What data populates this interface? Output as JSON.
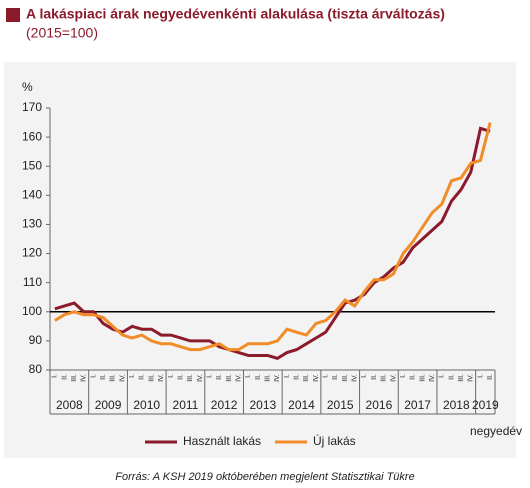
{
  "chart_data": {
    "type": "line",
    "title": "A lakáspiaci árak negyedévenkénti alakulása (tiszta árváltozás)",
    "subtitle": "(2015=100)",
    "y_label": "%",
    "x_label": "negyedév",
    "source": "Forrás: A KSH 2019 októberében megjelent Statisztikai Tükre",
    "categories": [
      "I.",
      "II.",
      "III.",
      "IV.",
      "I.",
      "II.",
      "III.",
      "IV.",
      "I.",
      "II.",
      "III.",
      "IV.",
      "I.",
      "II.",
      "III.",
      "IV.",
      "I.",
      "II.",
      "III.",
      "IV.",
      "I.",
      "II.",
      "III.",
      "IV.",
      "I.",
      "II.",
      "III.",
      "IV.",
      "I.",
      "II.",
      "III.",
      "IV.",
      "I.",
      "II.",
      "III.",
      "IV.",
      "I.",
      "II.",
      "III.",
      "IV.",
      "I.",
      "II.",
      "III.",
      "IV.",
      "I.",
      "II."
    ],
    "years": [
      "2008",
      "2009",
      "2010",
      "2011",
      "2012",
      "2013",
      "2014",
      "2015",
      "2016",
      "2017",
      "2018",
      "2019"
    ],
    "series": [
      {
        "name": "Használt lakás",
        "color": "#8b1a2b",
        "values": [
          101,
          102,
          103,
          100,
          100,
          96,
          94,
          93,
          95,
          94,
          94,
          92,
          92,
          91,
          90,
          90,
          90,
          88,
          87,
          86,
          85,
          85,
          85,
          84,
          86,
          87,
          89,
          91,
          93,
          98,
          103,
          104,
          106,
          110,
          112,
          115,
          117,
          122,
          125,
          128,
          131,
          138,
          142,
          148,
          163,
          162
        ]
      },
      {
        "name": "Új lakás",
        "color": "#f28c28",
        "values": [
          97,
          99,
          100,
          99,
          99,
          98,
          95,
          92,
          91,
          92,
          90,
          89,
          89,
          88,
          87,
          87,
          88,
          89,
          87,
          87,
          89,
          89,
          89,
          90,
          94,
          93,
          92,
          96,
          97,
          100,
          104,
          102,
          107,
          111,
          111,
          113,
          120,
          124,
          129,
          134,
          137,
          145,
          146,
          151,
          152,
          165
        ]
      }
    ],
    "reference_line": 100,
    "ylim": [
      80,
      170
    ],
    "yticks": [
      80,
      90,
      100,
      110,
      120,
      130,
      140,
      150,
      160,
      170
    ]
  }
}
